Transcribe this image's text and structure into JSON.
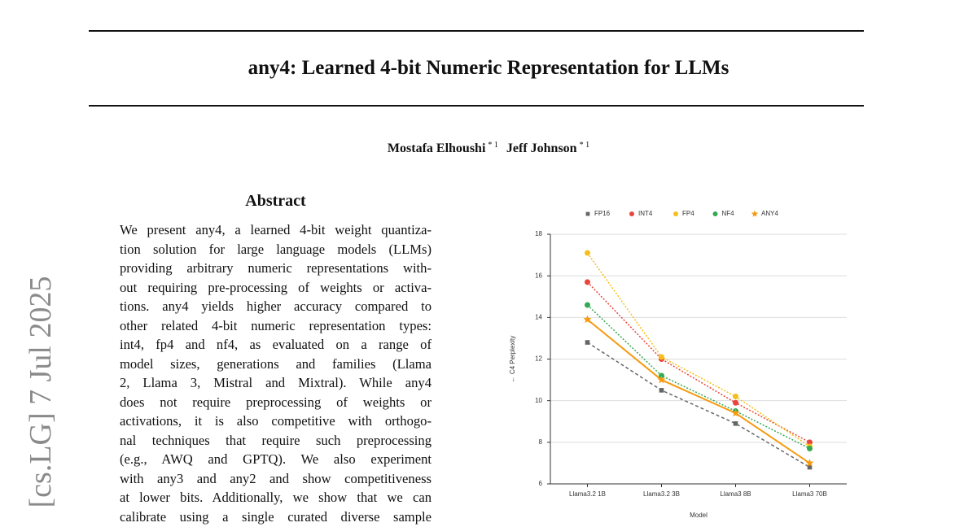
{
  "side_stamp": "[cs.LG]  7 Jul 2025",
  "header": {
    "title": "any4: Learned 4-bit Numeric Representation for LLMs",
    "authors": [
      {
        "name": "Mostafa Elhoushi",
        "marks": "* 1"
      },
      {
        "name": "Jeff Johnson",
        "marks": "* 1"
      }
    ]
  },
  "abstract": {
    "heading": "Abstract",
    "lines": [
      "We present any4, a learned 4-bit weight quantiza-",
      "tion solution for large language models (LLMs)",
      "providing arbitrary numeric representations with-",
      "out requiring pre-processing of weights or activa-",
      "tions. any4 yields higher accuracy compared to",
      "other related 4-bit numeric representation types:",
      "int4, fp4 and nf4, as evaluated on a range of",
      "model sizes, generations and families (Llama",
      "2, Llama 3, Mistral and Mixtral).  While any4",
      "does not require preprocessing of weights or",
      "activations, it is also competitive with orthogo-",
      "nal techniques that require such preprocessing",
      "(e.g., AWQ and GPTQ). We also experiment",
      "with any3 and any2 and show competitiveness",
      "at lower bits. Additionally, we show that we can",
      "calibrate using a single curated diverse sample"
    ]
  },
  "chart_data": {
    "type": "line",
    "xlabel": "Model",
    "ylabel": "← C4 Perplexity",
    "categories": [
      "Llama3.2 1B",
      "Llama3.2 3B",
      "Llama3 8B",
      "Llama3 70B"
    ],
    "ylim": [
      6,
      18
    ],
    "yticks": [
      6,
      8,
      10,
      12,
      14,
      16,
      18
    ],
    "grid": true,
    "legend": "top",
    "series": [
      {
        "name": "FP16",
        "color": "#666666",
        "marker": "square",
        "dash": "dashed",
        "values": [
          12.8,
          10.5,
          8.9,
          6.8
        ]
      },
      {
        "name": "INT4",
        "color": "#e8453c",
        "marker": "circle",
        "dash": "dotted",
        "values": [
          15.7,
          12.0,
          9.9,
          8.0
        ]
      },
      {
        "name": "FP4",
        "color": "#f5bf1a",
        "marker": "circle",
        "dash": "dotted",
        "values": [
          17.1,
          12.1,
          10.2,
          7.8
        ]
      },
      {
        "name": "NF4",
        "color": "#34a853",
        "marker": "circle",
        "dash": "dotted",
        "values": [
          14.6,
          11.2,
          9.5,
          7.7
        ]
      },
      {
        "name": "ANY4",
        "color": "#f59b12",
        "marker": "star",
        "dash": "solid",
        "values": [
          13.9,
          11.0,
          9.4,
          7.0
        ]
      }
    ]
  }
}
